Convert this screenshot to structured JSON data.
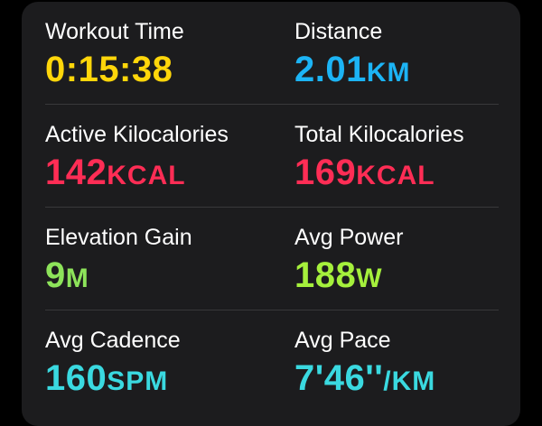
{
  "metrics": [
    {
      "label": "Workout Time",
      "value": "0:15:38",
      "unit": "",
      "color": "#ffd60a"
    },
    {
      "label": "Distance",
      "value": "2.01",
      "unit": "KM",
      "color": "#1cb4f5"
    },
    {
      "label": "Active Kilocalories",
      "value": "142",
      "unit": "KCAL",
      "color": "#ff2d55"
    },
    {
      "label": "Total Kilocalories",
      "value": "169",
      "unit": "KCAL",
      "color": "#ff2d55"
    },
    {
      "label": "Elevation Gain",
      "value": "9",
      "unit": "M",
      "color": "#8de35a"
    },
    {
      "label": "Avg Power",
      "value": "188",
      "unit": "W",
      "color": "#a5f03c"
    },
    {
      "label": "Avg Cadence",
      "value": "160",
      "unit": "SPM",
      "color": "#3ad9e0"
    },
    {
      "label": "Avg Pace",
      "value": "7'46''",
      "unit": "/KM",
      "color": "#3ad9e0"
    }
  ]
}
